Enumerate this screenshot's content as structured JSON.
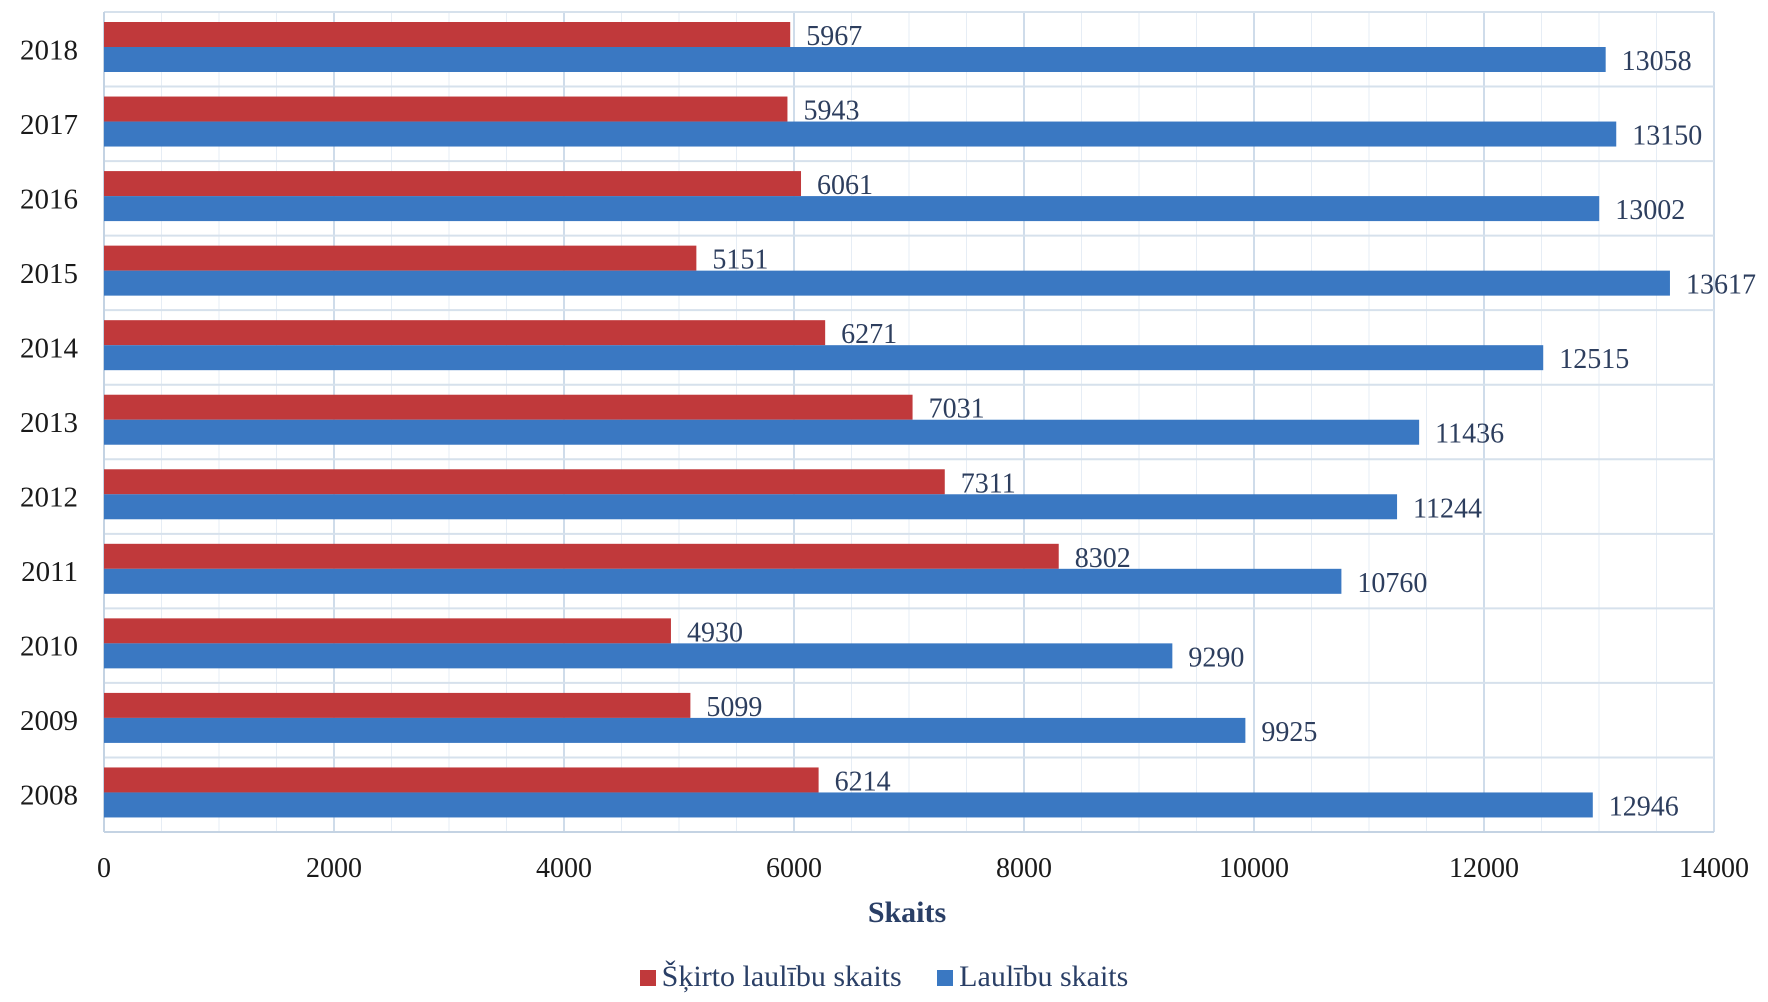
{
  "chart_data": {
    "type": "bar",
    "orientation": "horizontal",
    "categories": [
      "2018",
      "2017",
      "2016",
      "2015",
      "2014",
      "2013",
      "2012",
      "2011",
      "2010",
      "2009",
      "2008"
    ],
    "series": [
      {
        "name": "Šķirto laulību skaits",
        "color": "#c0393b",
        "values": [
          5967,
          5943,
          6061,
          5151,
          6271,
          7031,
          7311,
          8302,
          4930,
          5099,
          6214
        ]
      },
      {
        "name": "Laulību skaits",
        "color": "#3a78c2",
        "values": [
          13058,
          13150,
          13002,
          13617,
          12515,
          11436,
          11244,
          10760,
          9290,
          9925,
          12946
        ]
      }
    ],
    "xlabel": "Skaits",
    "ylabel": "",
    "xlim": [
      0,
      14000
    ],
    "xticks": [
      "0",
      "2000",
      "4000",
      "6000",
      "8000",
      "10000",
      "12000",
      "14000"
    ],
    "grid": true,
    "legend_position": "bottom"
  },
  "colors": {
    "grid": "#dce6f0",
    "axis": "#c4d3e3"
  }
}
